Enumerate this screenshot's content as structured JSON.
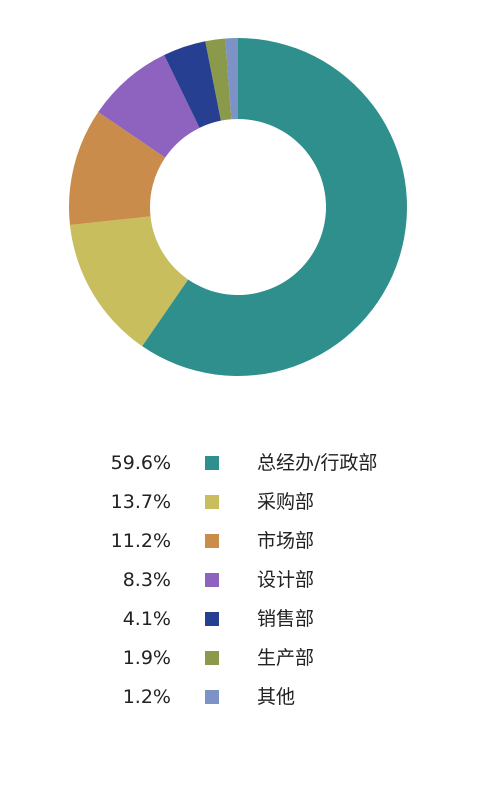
{
  "chart_data": {
    "type": "pie",
    "style": "donut",
    "slices": [
      {
        "label": "总经办/行政部",
        "percent_text": "59.6%",
        "value": 59.6,
        "color": "#2e8f8c"
      },
      {
        "label": "采购部",
        "percent_text": "13.7%",
        "value": 13.7,
        "color": "#c8be5e"
      },
      {
        "label": "市场部",
        "percent_text": "11.2%",
        "value": 11.2,
        "color": "#c98c4a"
      },
      {
        "label": "设计部",
        "percent_text": "8.3%",
        "value": 8.3,
        "color": "#8e62bf"
      },
      {
        "label": "销售部",
        "percent_text": "4.1%",
        "value": 4.1,
        "color": "#263f91"
      },
      {
        "label": "生产部",
        "percent_text": "1.9%",
        "value": 1.9,
        "color": "#8a9a4a"
      },
      {
        "label": "其他",
        "percent_text": "1.2%",
        "value": 1.2,
        "color": "#7d92c6"
      }
    ],
    "legend_position": "bottom",
    "start_angle": "top",
    "direction": "clockwise"
  }
}
